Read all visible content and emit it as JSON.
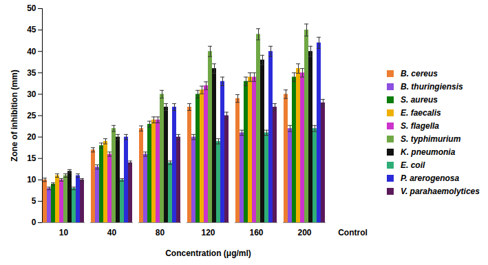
{
  "chart_data": {
    "type": "bar",
    "xlabel": "Concentration (μg/ml)",
    "ylabel": "Zone of inhibition (mm)",
    "categories": [
      "10",
      "40",
      "80",
      "120",
      "160",
      "200",
      "Control"
    ],
    "ylim": [
      0,
      50
    ],
    "yticks": [
      0,
      5,
      10,
      15,
      20,
      25,
      30,
      35,
      40,
      45,
      50
    ],
    "grid": false,
    "legend": "right",
    "series": [
      {
        "name": "B. cereus",
        "color": "#ed7d31",
        "values": [
          10,
          17,
          22,
          27,
          29,
          30,
          null
        ],
        "errors": [
          0.4,
          0.5,
          0.6,
          0.8,
          0.9,
          1,
          null
        ]
      },
      {
        "name": "B. thuringiensis",
        "color": "#8c4fe0",
        "values": [
          8,
          13,
          16,
          20,
          21,
          22,
          null
        ],
        "errors": [
          0.3,
          0.5,
          0.5,
          0.6,
          0.6,
          0.7,
          null
        ]
      },
      {
        "name": "S. aureus",
        "color": "#0a7d0a",
        "values": [
          9,
          18,
          23,
          30,
          33,
          34,
          null
        ],
        "errors": [
          0.3,
          0.6,
          0.7,
          0.9,
          1,
          1,
          null
        ]
      },
      {
        "name": "E.  faecalis",
        "color": "#f0b000",
        "values": [
          11,
          19,
          24,
          31,
          34,
          36,
          null
        ],
        "errors": [
          0.4,
          0.6,
          0.7,
          0.9,
          1,
          1.1,
          null
        ]
      },
      {
        "name": "S. flagella",
        "color": "#cc33cc",
        "values": [
          10,
          16,
          24,
          32,
          34,
          35,
          null
        ],
        "errors": [
          0.3,
          0.5,
          0.7,
          0.9,
          1,
          1,
          null
        ]
      },
      {
        "name": "S. typhimurium",
        "color": "#70a845",
        "values": [
          11,
          22,
          30,
          40,
          44,
          45,
          null
        ],
        "errors": [
          0.4,
          0.7,
          0.9,
          1.2,
          1.3,
          1.4,
          null
        ]
      },
      {
        "name": "K. pneumonia",
        "color": "#111111",
        "values": [
          12,
          20,
          27,
          36,
          38,
          40,
          null
        ],
        "errors": [
          0.4,
          0.6,
          0.8,
          1.1,
          1.1,
          1.2,
          null
        ]
      },
      {
        "name": "E. coil",
        "color": "#2fae78",
        "values": [
          8,
          10,
          14,
          19,
          21,
          22,
          null
        ],
        "errors": [
          0.3,
          0.3,
          0.4,
          0.6,
          0.6,
          0.7,
          null
        ]
      },
      {
        "name": "P. arerogenosa",
        "color": "#2b2bd9",
        "values": [
          11,
          20,
          27,
          33,
          40,
          42,
          null
        ],
        "errors": [
          0.4,
          0.6,
          0.8,
          1,
          1.2,
          1.3,
          null
        ]
      },
      {
        "name": "V. parahaemolytices",
        "color": "#5a1a5a",
        "values": [
          10,
          14,
          20,
          25,
          27,
          28,
          null
        ],
        "errors": [
          0.3,
          0.4,
          0.6,
          0.8,
          0.8,
          0.8,
          null
        ]
      }
    ]
  }
}
